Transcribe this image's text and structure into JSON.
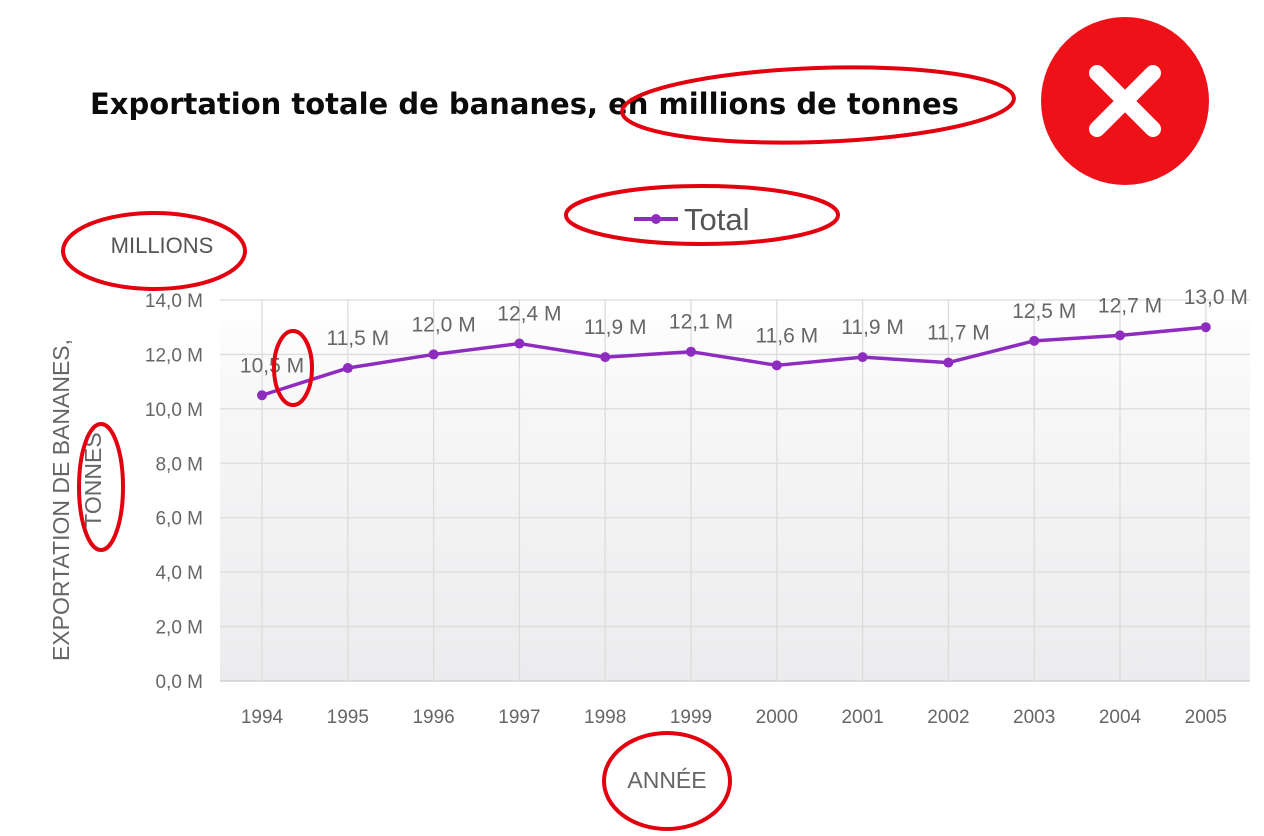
{
  "chart_data": {
    "type": "line",
    "title": "Exportation totale de bananes, en millions de tonnes",
    "unit_label": "MILLIONS",
    "ylabel_line1": "EXPORTATION DE BANANES,",
    "ylabel_line2": "TONNES",
    "xlabel": "ANNÉE",
    "categories": [
      "1994",
      "1995",
      "1996",
      "1997",
      "1998",
      "1999",
      "2000",
      "2001",
      "2002",
      "2003",
      "2004",
      "2005"
    ],
    "series": [
      {
        "name": "Total",
        "color": "#8e2cbf",
        "values": [
          10.5,
          11.5,
          12.0,
          12.4,
          11.9,
          12.1,
          11.6,
          11.9,
          11.7,
          12.5,
          12.7,
          13.0
        ],
        "labels": [
          "10,5 M",
          "11,5 M",
          "12,0 M",
          "12,4 M",
          "11,9 M",
          "12,1 M",
          "11,6 M",
          "11,9 M",
          "11,7 M",
          "12,5 M",
          "12,7 M",
          "13,0 M"
        ]
      }
    ],
    "ylim": [
      0,
      14
    ],
    "yticks": [
      0,
      2,
      4,
      6,
      8,
      10,
      12,
      14
    ],
    "ytick_labels": [
      "0,0 M",
      "2,0 M",
      "4,0 M",
      "6,0 M",
      "8,0 M",
      "10,0 M",
      "12,0 M",
      "14,0 M"
    ],
    "grid": true,
    "legend": "top-center"
  },
  "annotation": {
    "color": "#e3000f",
    "icon": "close-icon",
    "meaning": "incorrect"
  }
}
